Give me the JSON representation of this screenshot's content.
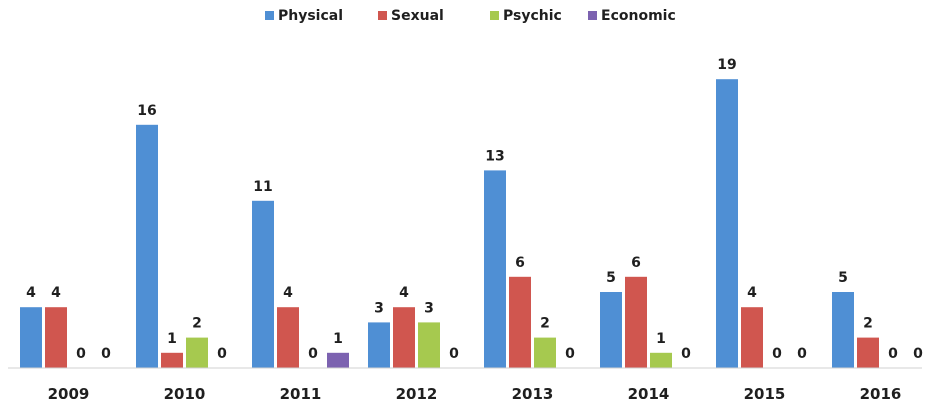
{
  "chart_data": {
    "type": "bar",
    "categories": [
      "2009",
      "2010",
      "2011",
      "2012",
      "2013",
      "2014",
      "2015",
      "2016"
    ],
    "series": [
      {
        "name": "Physical",
        "color": "#4f8fd4",
        "values": [
          4,
          16,
          11,
          3,
          13,
          5,
          19,
          5
        ]
      },
      {
        "name": "Sexual",
        "color": "#d0564f",
        "values": [
          4,
          1,
          4,
          4,
          6,
          6,
          4,
          2
        ]
      },
      {
        "name": "Psychic",
        "color": "#a6c94f",
        "values": [
          0,
          2,
          0,
          3,
          2,
          1,
          0,
          0
        ]
      },
      {
        "name": "Economic",
        "color": "#7c62b0",
        "values": [
          0,
          0,
          1,
          0,
          0,
          0,
          0,
          0
        ]
      }
    ],
    "title": "",
    "xlabel": "",
    "ylabel": "",
    "ylim": [
      0,
      20
    ],
    "grid": false,
    "data_labels": true,
    "legend_position": "top-center"
  }
}
